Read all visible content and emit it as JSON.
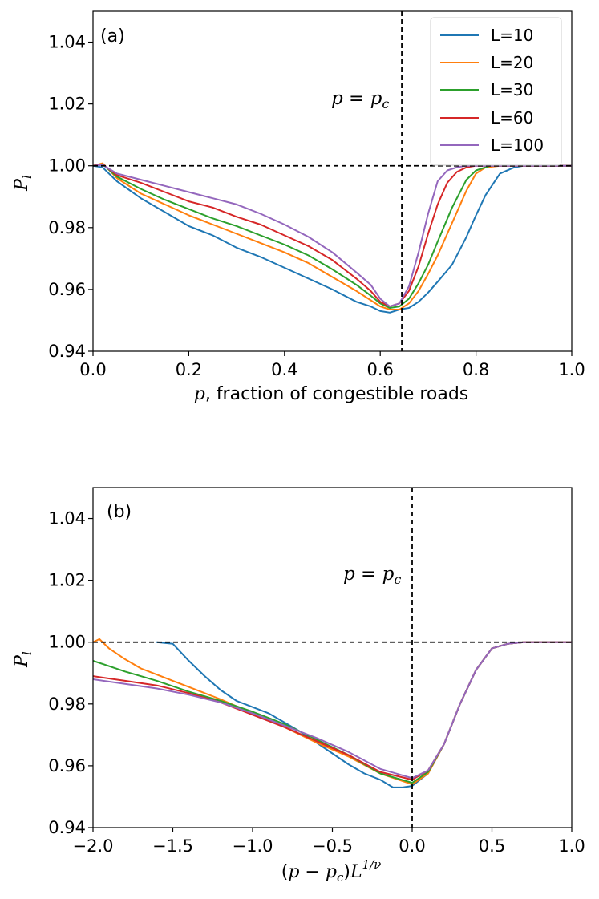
{
  "chart_data": [
    {
      "type": "line",
      "panel": "(a)",
      "xlabel": "p, fraction of congestible roads",
      "ylabel": "P_l",
      "xlim": [
        0.0,
        1.0
      ],
      "ylim": [
        0.94,
        1.05
      ],
      "xticks": [
        0.0,
        0.2,
        0.4,
        0.6,
        0.8,
        1.0
      ],
      "xtick_labels": [
        "0.0",
        "0.2",
        "0.4",
        "0.6",
        "0.8",
        "1.0"
      ],
      "yticks": [
        0.94,
        0.96,
        0.98,
        1.0,
        1.02,
        1.04
      ],
      "ytick_labels": [
        "0.94",
        "0.96",
        "0.98",
        "1.00",
        "1.02",
        "1.04"
      ],
      "hline": 1.0,
      "vline": 0.645,
      "annotation": "p = p_c",
      "annotation_parts": {
        "a": "p",
        "eq": " = ",
        "b": "p",
        "sub": "c"
      },
      "legend_loc": "top-right",
      "series": [
        {
          "name": "L=10",
          "color": "#1f77b4",
          "x": [
            0,
            0.02,
            0.05,
            0.1,
            0.15,
            0.2,
            0.25,
            0.3,
            0.35,
            0.4,
            0.45,
            0.5,
            0.55,
            0.58,
            0.6,
            0.62,
            0.64,
            0.66,
            0.68,
            0.7,
            0.72,
            0.75,
            0.78,
            0.8,
            0.82,
            0.85,
            0.88,
            0.9,
            1.0
          ],
          "y": [
            1.0,
            0.9995,
            0.995,
            0.9895,
            0.985,
            0.9805,
            0.9775,
            0.9735,
            0.9705,
            0.967,
            0.9635,
            0.96,
            0.956,
            0.9545,
            0.953,
            0.9525,
            0.9535,
            0.954,
            0.956,
            0.959,
            0.9625,
            0.968,
            0.977,
            0.984,
            0.9905,
            0.9975,
            0.9995,
            1.0,
            1.0
          ]
        },
        {
          "name": "L=20",
          "color": "#ff7f0e",
          "x": [
            0,
            0.02,
            0.05,
            0.1,
            0.15,
            0.2,
            0.25,
            0.3,
            0.35,
            0.4,
            0.45,
            0.5,
            0.55,
            0.58,
            0.6,
            0.62,
            0.64,
            0.66,
            0.68,
            0.7,
            0.72,
            0.75,
            0.78,
            0.8,
            0.82,
            0.85,
            1.0
          ],
          "y": [
            1.0,
            1.0008,
            0.996,
            0.991,
            0.9875,
            0.984,
            0.981,
            0.978,
            0.975,
            0.972,
            0.9685,
            0.964,
            0.9595,
            0.9565,
            0.9545,
            0.9535,
            0.9535,
            0.9555,
            0.9595,
            0.965,
            0.971,
            0.9815,
            0.992,
            0.9975,
            0.9995,
            1.0,
            1.0
          ]
        },
        {
          "name": "L=30",
          "color": "#2ca02c",
          "x": [
            0,
            0.02,
            0.05,
            0.1,
            0.15,
            0.2,
            0.25,
            0.3,
            0.35,
            0.4,
            0.45,
            0.5,
            0.55,
            0.58,
            0.6,
            0.62,
            0.64,
            0.66,
            0.68,
            0.7,
            0.72,
            0.75,
            0.78,
            0.8,
            0.83,
            1.0
          ],
          "y": [
            1.0,
            1.0005,
            0.9965,
            0.9925,
            0.989,
            0.986,
            0.983,
            0.9805,
            0.9775,
            0.9745,
            0.971,
            0.9665,
            0.9615,
            0.958,
            0.9555,
            0.954,
            0.9545,
            0.957,
            0.962,
            0.968,
            0.9755,
            0.9865,
            0.9955,
            0.9985,
            1.0,
            1.0
          ]
        },
        {
          "name": "L=60",
          "color": "#d62728",
          "x": [
            0,
            0.02,
            0.05,
            0.1,
            0.15,
            0.2,
            0.25,
            0.3,
            0.35,
            0.4,
            0.45,
            0.5,
            0.55,
            0.58,
            0.6,
            0.62,
            0.64,
            0.66,
            0.68,
            0.7,
            0.72,
            0.74,
            0.76,
            0.78,
            0.8,
            1.0
          ],
          "y": [
            1.0,
            1.0005,
            0.997,
            0.9945,
            0.9915,
            0.9885,
            0.9865,
            0.9835,
            0.981,
            0.9775,
            0.974,
            0.9695,
            0.9635,
            0.9595,
            0.956,
            0.9545,
            0.9555,
            0.9595,
            0.9675,
            0.978,
            0.9875,
            0.9945,
            0.998,
            0.9995,
            1.0,
            1.0
          ]
        },
        {
          "name": "L=100",
          "color": "#9467bd",
          "x": [
            0,
            0.02,
            0.05,
            0.1,
            0.15,
            0.2,
            0.25,
            0.3,
            0.35,
            0.4,
            0.45,
            0.5,
            0.55,
            0.58,
            0.6,
            0.62,
            0.64,
            0.66,
            0.68,
            0.7,
            0.72,
            0.74,
            0.76,
            0.78,
            1.0
          ],
          "y": [
            1.0,
            1.0003,
            0.9975,
            0.9955,
            0.9935,
            0.9915,
            0.9895,
            0.9875,
            0.9845,
            0.981,
            0.977,
            0.972,
            0.9655,
            0.9615,
            0.957,
            0.9545,
            0.9555,
            0.961,
            0.972,
            0.9845,
            0.995,
            0.9985,
            0.9995,
            1.0,
            1.0
          ]
        }
      ]
    },
    {
      "type": "line",
      "panel": "(b)",
      "xlabel": "(p − p_c)L^(1/ν)",
      "xlabel_parts": {
        "open": "(",
        "a": "p",
        "minus": " − ",
        "b": "p",
        "sub": "c",
        "close": ")",
        "L": "L",
        "sup": "1/ν"
      },
      "ylabel": "P_l",
      "xlim": [
        -2.0,
        1.0
      ],
      "ylim": [
        0.94,
        1.05
      ],
      "xticks": [
        -2.0,
        -1.5,
        -1.0,
        -0.5,
        0.0,
        0.5,
        1.0
      ],
      "xtick_labels": [
        "−2.0",
        "−1.5",
        "−1.0",
        "−0.5",
        "0.0",
        "0.5",
        "1.0"
      ],
      "yticks": [
        0.94,
        0.96,
        0.98,
        1.0,
        1.02,
        1.04
      ],
      "ytick_labels": [
        "0.94",
        "0.96",
        "0.98",
        "1.00",
        "1.02",
        "1.04"
      ],
      "hline": 1.0,
      "vline": 0.0,
      "annotation": "p = p_c",
      "annotation_parts": {
        "a": "p",
        "eq": " = ",
        "b": "p",
        "sub": "c"
      },
      "series": [
        {
          "name": "L=10",
          "color": "#1f77b4",
          "x": [
            -1.6,
            -1.5,
            -1.4,
            -1.3,
            -1.2,
            -1.1,
            -1.0,
            -0.9,
            -0.8,
            -0.7,
            -0.6,
            -0.5,
            -0.4,
            -0.3,
            -0.2,
            -0.12,
            -0.06,
            0.0,
            0.1,
            0.2,
            0.3,
            0.4,
            0.5,
            0.6,
            0.7,
            1.0
          ],
          "y": [
            1.0,
            0.9995,
            0.994,
            0.989,
            0.9845,
            0.981,
            0.979,
            0.977,
            0.974,
            0.971,
            0.9675,
            0.964,
            0.9605,
            0.9575,
            0.9555,
            0.953,
            0.953,
            0.9535,
            0.9575,
            0.967,
            0.98,
            0.991,
            0.998,
            0.9995,
            1.0,
            1.0
          ]
        },
        {
          "name": "L=20",
          "color": "#ff7f0e",
          "x": [
            -2.0,
            -1.96,
            -1.9,
            -1.8,
            -1.7,
            -1.6,
            -1.5,
            -1.4,
            -1.2,
            -1.0,
            -0.8,
            -0.6,
            -0.4,
            -0.2,
            0.0,
            0.1,
            0.2,
            0.3,
            0.4,
            0.5,
            0.6,
            0.7,
            1.0
          ],
          "y": [
            1.0,
            1.001,
            0.998,
            0.9945,
            0.9915,
            0.9895,
            0.9875,
            0.9855,
            0.9815,
            0.977,
            0.9725,
            0.9675,
            0.963,
            0.9575,
            0.954,
            0.9575,
            0.967,
            0.98,
            0.991,
            0.998,
            0.9995,
            1.0,
            1.0
          ]
        },
        {
          "name": "L=30",
          "color": "#2ca02c",
          "x": [
            -2.0,
            -1.8,
            -1.6,
            -1.4,
            -1.2,
            -1.0,
            -0.8,
            -0.6,
            -0.4,
            -0.2,
            0.0,
            0.1,
            0.2,
            0.3,
            0.4,
            0.5,
            0.6,
            0.7,
            1.0
          ],
          "y": [
            0.994,
            0.9905,
            0.9875,
            0.984,
            0.981,
            0.9775,
            0.9735,
            0.9685,
            0.9635,
            0.9575,
            0.9545,
            0.958,
            0.967,
            0.98,
            0.991,
            0.998,
            0.9995,
            1.0,
            1.0
          ]
        },
        {
          "name": "L=60",
          "color": "#d62728",
          "x": [
            -2.0,
            -1.8,
            -1.6,
            -1.4,
            -1.2,
            -1.0,
            -0.8,
            -0.6,
            -0.4,
            -0.2,
            0.0,
            0.1,
            0.2,
            0.3,
            0.4,
            0.5,
            0.6,
            0.7,
            1.0
          ],
          "y": [
            0.989,
            0.9875,
            0.986,
            0.9835,
            0.9805,
            0.9765,
            0.9725,
            0.968,
            0.9635,
            0.958,
            0.9555,
            0.9585,
            0.967,
            0.98,
            0.991,
            0.998,
            0.9995,
            1.0,
            1.0
          ]
        },
        {
          "name": "L=100",
          "color": "#9467bd",
          "x": [
            -2.0,
            -1.8,
            -1.6,
            -1.4,
            -1.2,
            -1.0,
            -0.8,
            -0.6,
            -0.4,
            -0.2,
            0.0,
            0.1,
            0.2,
            0.3,
            0.4,
            0.5,
            0.6,
            0.7,
            1.0
          ],
          "y": [
            0.988,
            0.9865,
            0.985,
            0.983,
            0.9805,
            0.977,
            0.973,
            0.969,
            0.9645,
            0.959,
            0.956,
            0.9585,
            0.967,
            0.98,
            0.991,
            0.998,
            0.9995,
            1.0,
            1.0
          ]
        }
      ]
    }
  ]
}
